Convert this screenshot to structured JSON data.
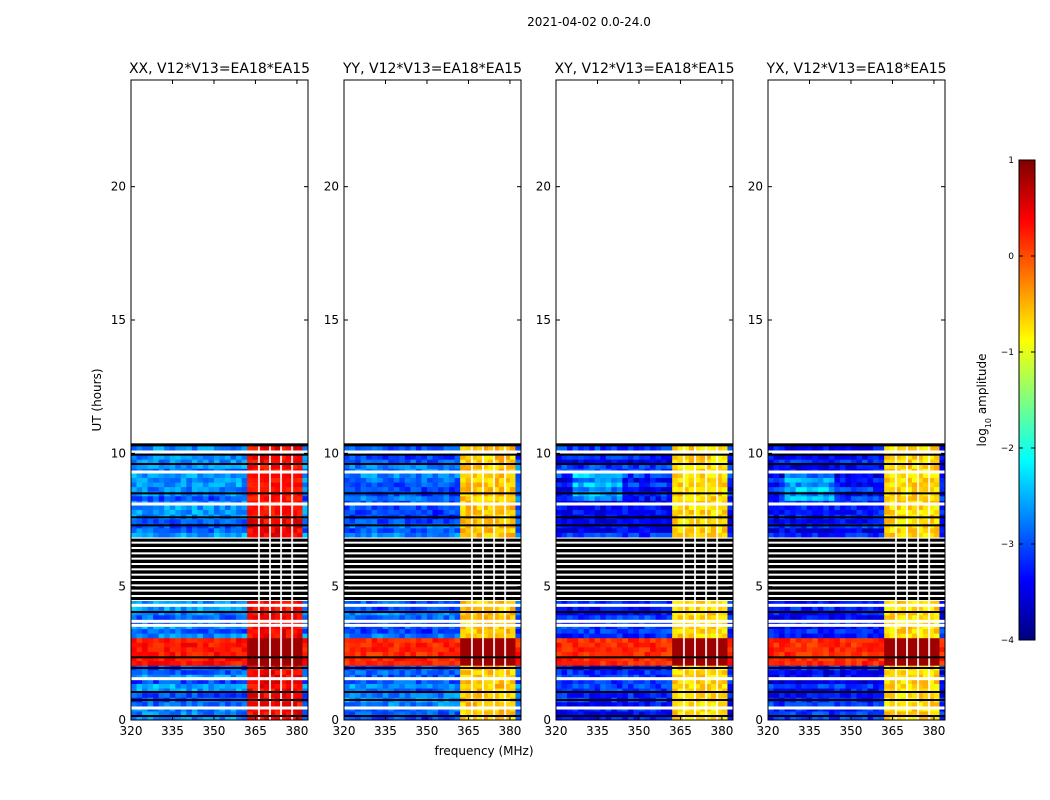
{
  "figure_title": "2021-04-02 0.0-24.0",
  "xlabel": "frequency (MHz)",
  "ylabel": "UT (hours)",
  "colorbar": {
    "label_prefix": "log",
    "label_sub": "10",
    "label_suffix": " amplitude",
    "ticks": [
      "1",
      "0",
      "−1",
      "−2",
      "−3",
      "−4"
    ],
    "tick_values": [
      1,
      0,
      -1,
      -2,
      -3,
      -4
    ],
    "range": [
      -4,
      1
    ],
    "colormap": "jet",
    "jet_stops": [
      "#00007f",
      "#0000ff",
      "#007fff",
      "#00ffff",
      "#7fff7f",
      "#ffff00",
      "#ff7f00",
      "#ff0000",
      "#7f0000"
    ]
  },
  "chart_data": {
    "type": "heatmap",
    "x_ticks": [
      "320",
      "335",
      "350",
      "365",
      "380"
    ],
    "x_tick_values": [
      320,
      335,
      350,
      365,
      380
    ],
    "y_ticks": [
      "0",
      "5",
      "10",
      "15",
      "20"
    ],
    "y_tick_values": [
      0,
      5,
      10,
      15,
      20
    ],
    "xlim": [
      320,
      384
    ],
    "ylim": [
      0,
      24
    ],
    "panels": [
      {
        "title": "XX, V12*V13=EA18*EA15"
      },
      {
        "title": "YY, V12*V13=EA18*EA15"
      },
      {
        "title": "XY, V12*V13=EA18*EA15"
      },
      {
        "title": "YX, V12*V13=EA18*EA15"
      }
    ],
    "data_coverage_hours": [
      0,
      10.3
    ],
    "rfi_band_mhz": [
      363,
      381
    ],
    "strong_rfi_hours": [
      2.0,
      3.1
    ],
    "blank_hours": [
      4.5,
      6.8
    ],
    "panel_base_log_amplitude": [
      -2.8,
      -2.9,
      -3.3,
      -3.3
    ],
    "panel_rfi_log_amplitude": [
      0.4,
      -0.6,
      -0.7,
      -0.7
    ]
  }
}
